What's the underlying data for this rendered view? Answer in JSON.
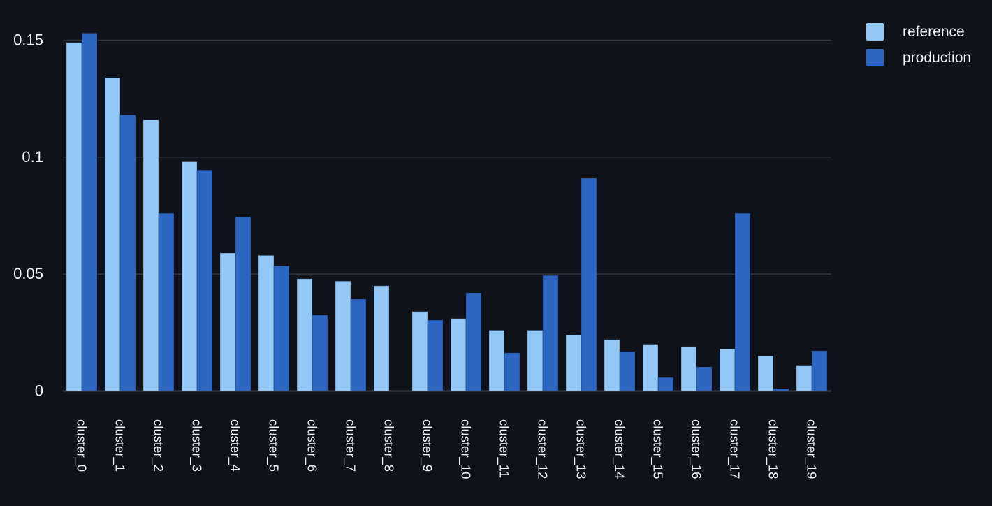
{
  "chart_data": {
    "type": "bar",
    "title": "",
    "xlabel": "",
    "ylabel": "",
    "categories": [
      "cluster_0",
      "cluster_1",
      "cluster_2",
      "cluster_3",
      "cluster_4",
      "cluster_5",
      "cluster_6",
      "cluster_7",
      "cluster_8",
      "cluster_9",
      "cluster_10",
      "cluster_11",
      "cluster_12",
      "cluster_13",
      "cluster_14",
      "cluster_15",
      "cluster_16",
      "cluster_17",
      "cluster_18",
      "cluster_19"
    ],
    "series": [
      {
        "name": "reference",
        "color": "#93c7f5",
        "values": [
          0.149,
          0.134,
          0.116,
          0.098,
          0.059,
          0.058,
          0.048,
          0.047,
          0.045,
          0.034,
          0.031,
          0.026,
          0.026,
          0.024,
          0.022,
          0.02,
          0.019,
          0.018,
          0.015,
          0.011
        ]
      },
      {
        "name": "production",
        "color": "#2c66c4",
        "values": [
          0.153,
          0.118,
          0.076,
          0.0945,
          0.0745,
          0.0535,
          0.0325,
          0.0393,
          0,
          0.0303,
          0.042,
          0.0163,
          0.0494,
          0.091,
          0.0169,
          0.0058,
          0.0103,
          0.076,
          0.001,
          0.0172
        ]
      }
    ],
    "ylim": [
      0,
      0.157
    ],
    "yticks": [
      0,
      0.05,
      0.1,
      0.15
    ],
    "ytick_labels": [
      "0",
      "0.05",
      "0.1",
      "0.15"
    ],
    "grid": "horizontal",
    "legend_position": "top-right"
  },
  "theme": {
    "background": "#0f1218",
    "gridline_color": "#30343e",
    "baseline_color": "#3d434f",
    "text_color": "#f2f4f7",
    "bar_edge_color": "rgba(18,28,48,0.35)"
  }
}
